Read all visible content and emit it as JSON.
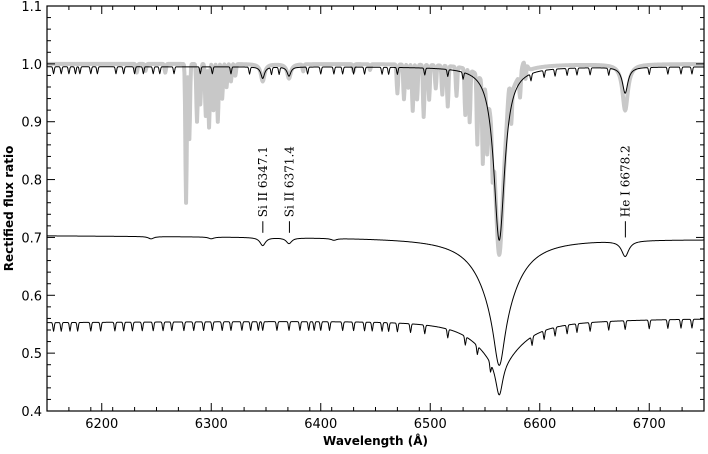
{
  "chart_data": {
    "type": "line",
    "title": "",
    "xlabel": "Wavelength (Å)",
    "ylabel": "Rectified flux ratio",
    "xlim": [
      6150,
      6750
    ],
    "ylim": [
      0.4,
      1.1
    ],
    "x_ticks": [
      6200,
      6300,
      6400,
      6500,
      6600,
      6700
    ],
    "y_ticks": [
      0.4,
      0.5,
      0.6,
      0.7,
      0.8,
      0.9,
      1.0,
      1.1
    ],
    "x_tick_labels": [
      "6200",
      "6300",
      "6400",
      "6500",
      "6600",
      "6700"
    ],
    "y_tick_labels": [
      "0.4",
      "0.5",
      "0.6",
      "0.7",
      "0.8",
      "0.9",
      "1.0",
      "1.1"
    ],
    "grid": false,
    "series": [
      {
        "color": "#c8c8c8",
        "width": 4,
        "continuum": 1.0,
        "lines": [
          {
            "center": 6563,
            "depth": 0.33,
            "width": 5
          },
          {
            "center": 6678,
            "depth": 0.08,
            "width": 3
          },
          {
            "center": 6347,
            "depth": 0.03,
            "width": 2
          },
          {
            "center": 6371,
            "depth": 0.025,
            "width": 2
          }
        ],
        "telluric": [
          {
            "center": 6277,
            "depth": 0.24
          },
          {
            "center": 6280,
            "depth": 0.13
          },
          {
            "center": 6287,
            "depth": 0.1
          },
          {
            "center": 6290,
            "depth": 0.07
          },
          {
            "center": 6295,
            "depth": 0.09
          },
          {
            "center": 6298,
            "depth": 0.11
          },
          {
            "center": 6302,
            "depth": 0.08
          },
          {
            "center": 6306,
            "depth": 0.1
          },
          {
            "center": 6310,
            "depth": 0.06
          },
          {
            "center": 6314,
            "depth": 0.04
          },
          {
            "center": 6318,
            "depth": 0.03
          },
          {
            "center": 6322,
            "depth": 0.02
          },
          {
            "center": 6470,
            "depth": 0.05
          },
          {
            "center": 6476,
            "depth": 0.06
          },
          {
            "center": 6480,
            "depth": 0.04
          },
          {
            "center": 6484,
            "depth": 0.08
          },
          {
            "center": 6488,
            "depth": 0.06
          },
          {
            "center": 6494,
            "depth": 0.09
          },
          {
            "center": 6499,
            "depth": 0.06
          },
          {
            "center": 6505,
            "depth": 0.04
          },
          {
            "center": 6511,
            "depth": 0.05
          },
          {
            "center": 6516,
            "depth": 0.07
          },
          {
            "center": 6524,
            "depth": 0.05
          },
          {
            "center": 6532,
            "depth": 0.08
          },
          {
            "center": 6536,
            "depth": 0.09
          },
          {
            "center": 6543,
            "depth": 0.12
          },
          {
            "center": 6548,
            "depth": 0.14
          },
          {
            "center": 6552,
            "depth": 0.1
          },
          {
            "center": 6557,
            "depth": 0.07
          },
          {
            "center": 6574,
            "depth": 0.06
          },
          {
            "center": 6582,
            "depth": 0.04
          },
          {
            "center": 6587,
            "depth": 0.03
          },
          {
            "center": 6232,
            "depth": 0.015
          },
          {
            "center": 6240,
            "depth": 0.012
          },
          {
            "center": 6258,
            "depth": 0.015
          },
          {
            "center": 6384,
            "depth": 0.012
          },
          {
            "center": 6430,
            "depth": 0.012
          },
          {
            "center": 6445,
            "depth": 0.01
          }
        ],
        "bumps": [
          {
            "center": 6572,
            "height": 0.035,
            "width": 2
          },
          {
            "center": 6586,
            "height": 0.02,
            "width": 3
          }
        ]
      },
      {
        "color": "#000000",
        "width": 1,
        "continuum": 0.995,
        "lines": [
          {
            "center": 6563,
            "depth": 0.3,
            "width": 6
          },
          {
            "center": 6678,
            "depth": 0.045,
            "width": 3
          },
          {
            "center": 6347,
            "depth": 0.02,
            "width": 2
          },
          {
            "center": 6371,
            "depth": 0.016,
            "width": 2
          }
        ],
        "metal_lines": [
          6156,
          6163,
          6170,
          6176,
          6180,
          6190,
          6196,
          6213,
          6220,
          6230,
          6238,
          6247,
          6253,
          6266,
          6290,
          6301,
          6318,
          6335,
          6355,
          6362,
          6388,
          6400,
          6412,
          6420,
          6430,
          6440,
          6456,
          6462,
          6470,
          6495,
          6516,
          6530,
          6592,
          6604,
          6614,
          6625,
          6634,
          6646,
          6663,
          6700,
          6717,
          6729,
          6739
        ],
        "metal_depth": 0.012
      },
      {
        "color": "#000000",
        "width": 1,
        "continuum": 0.703,
        "slope": -1e-05,
        "lines": [
          {
            "center": 6563,
            "depth": 0.1,
            "width": 6
          },
          {
            "center": 6563,
            "depth": 0.12,
            "width": 20
          },
          {
            "center": 6678,
            "depth": 0.027,
            "width": 4
          },
          {
            "center": 6347,
            "depth": 0.014,
            "width": 3
          },
          {
            "center": 6371,
            "depth": 0.01,
            "width": 3
          },
          {
            "center": 6245,
            "depth": 0.004,
            "width": 3
          },
          {
            "center": 6300,
            "depth": 0.003,
            "width": 3
          },
          {
            "center": 6412,
            "depth": 0.003,
            "width": 3
          }
        ]
      },
      {
        "color": "#000000",
        "width": 1,
        "continuum": 0.553,
        "slope": 1.17e-05,
        "lines": [
          {
            "center": 6563,
            "depth": 0.06,
            "width": 4
          },
          {
            "center": 6563,
            "depth": 0.07,
            "width": 25
          }
        ],
        "metal_lines": [
          6156,
          6163,
          6171,
          6178,
          6190,
          6199,
          6212,
          6220,
          6228,
          6237,
          6247,
          6256,
          6264,
          6275,
          6284,
          6293,
          6301,
          6310,
          6318,
          6328,
          6336,
          6343,
          6347,
          6360,
          6371,
          6381,
          6389,
          6394,
          6400,
          6408,
          6420,
          6430,
          6440,
          6447,
          6456,
          6462,
          6470,
          6482,
          6495,
          6516,
          6532,
          6543,
          6555,
          6593,
          6604,
          6614,
          6625,
          6634,
          6646,
          6663,
          6678,
          6700,
          6717,
          6729,
          6739
        ],
        "metal_depth": 0.015
      }
    ],
    "annotations": [
      {
        "text": "Si II 6347.1",
        "x": 6347.1,
        "y_tick_top": 0.728,
        "y_tick_bottom": 0.708
      },
      {
        "text": "Si II 6371.4",
        "x": 6371.4,
        "y_tick_top": 0.728,
        "y_tick_bottom": 0.708
      },
      {
        "text": "He I 6678.2",
        "x": 6678.2,
        "y_tick_top": 0.728,
        "y_tick_bottom": 0.7
      }
    ]
  }
}
